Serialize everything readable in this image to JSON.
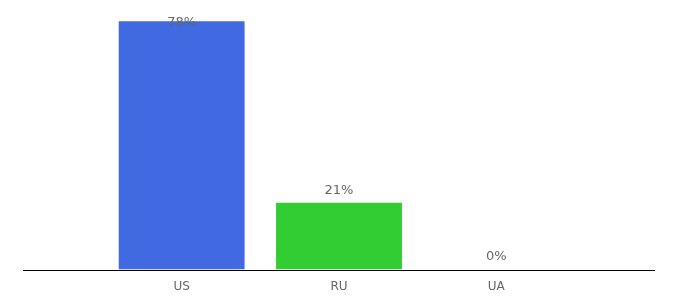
{
  "chart_data": {
    "type": "bar",
    "categories": [
      "US",
      "RU",
      "UA"
    ],
    "values": [
      78,
      21,
      0
    ],
    "value_labels": [
      "78%",
      "21%",
      "0%"
    ],
    "colors": [
      "#4169e1",
      "#32cd32",
      "#87ceeb"
    ],
    "data_labels": true,
    "grid": false,
    "tick_labels": "x"
  }
}
